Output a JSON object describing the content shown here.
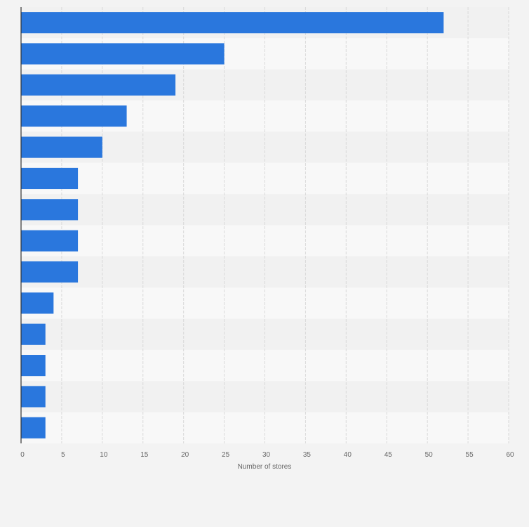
{
  "chart_data": {
    "type": "bar",
    "orientation": "horizontal",
    "xlabel": "Number of stores",
    "ylabel": "",
    "title": "",
    "xlim": [
      0,
      60
    ],
    "xticks": [
      0,
      5,
      10,
      15,
      20,
      25,
      30,
      35,
      40,
      45,
      50,
      55,
      60
    ],
    "xtick_labels": [
      "0",
      "5",
      "10",
      "15",
      "20",
      "25",
      "30",
      "35",
      "40",
      "45",
      "50",
      "55",
      "60"
    ],
    "categories": [
      "",
      "",
      "",
      "",
      "",
      "",
      "",
      "",
      "",
      "",
      "",
      "",
      "",
      ""
    ],
    "values": [
      52,
      25,
      19,
      13,
      10,
      7,
      7,
      7,
      7,
      4,
      3,
      3,
      3,
      3
    ],
    "grid": "vertical",
    "legend": "none"
  },
  "colors": {
    "bar": "#2a77dd",
    "page_background": "#f3f3f3",
    "band_light": "#f8f8f8",
    "band_dark": "#f1f1f1",
    "grid": "#d9d9d9",
    "axis": "#333333",
    "text": "#666666"
  }
}
